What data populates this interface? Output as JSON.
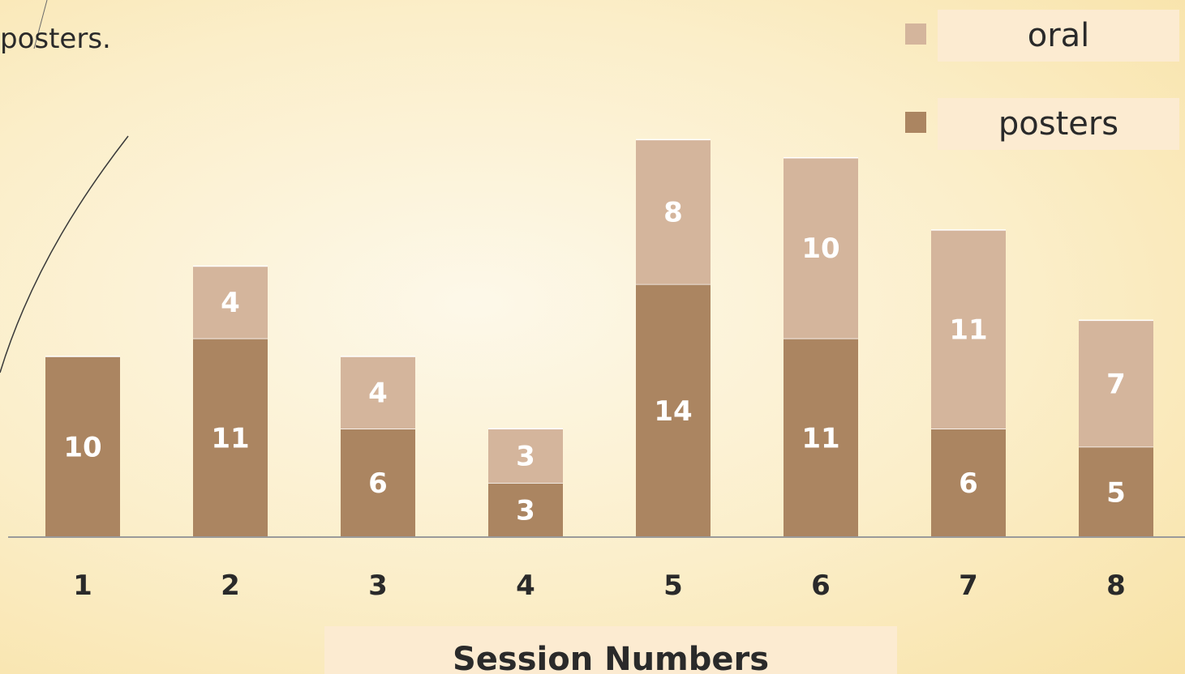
{
  "caption": "posters.",
  "colors": {
    "oral": "#d4b59c",
    "posters": "#ab8561",
    "bar_label": "#ffffff",
    "axis": "#9a9a9a",
    "text": "#2a2a2a"
  },
  "legend": [
    {
      "name": "oral",
      "color": "#d4b59c"
    },
    {
      "name": "posters",
      "color": "#ab8561"
    }
  ],
  "chart_data": {
    "type": "bar",
    "stacked": true,
    "categories": [
      "1",
      "2",
      "3",
      "4",
      "5",
      "6",
      "7",
      "8"
    ],
    "series": [
      {
        "name": "posters",
        "values": [
          10,
          11,
          6,
          3,
          14,
          11,
          6,
          5
        ]
      },
      {
        "name": "oral",
        "values": [
          0,
          4,
          4,
          3,
          8,
          10,
          11,
          7
        ]
      }
    ],
    "title": "",
    "xlabel": "Session Numbers",
    "ylabel": "",
    "grid": false,
    "legend_position": "top-right"
  }
}
